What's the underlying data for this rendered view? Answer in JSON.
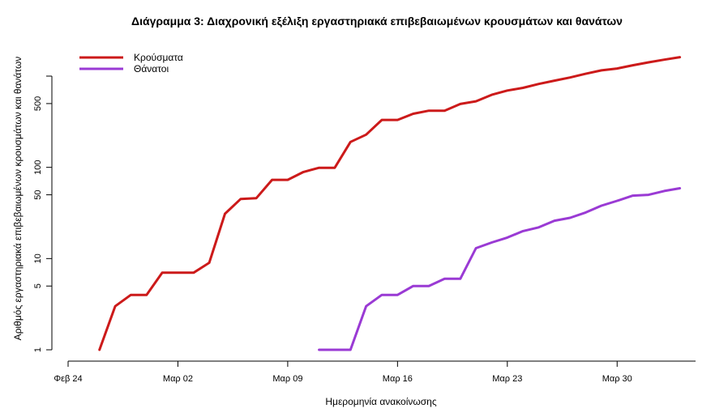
{
  "chart_data": {
    "type": "line",
    "title": "Διάγραμμα 3: Διαχρονική εξέλιξη εργαστηριακά επιβεβαιωμένων κρουσμάτων και θανάτων",
    "xlabel": "Ημερομηνία ανακοίνωσης",
    "ylabel": "Αριθμός εργαστηριακά επιβεβαιωμένων κρουσμάτων και θανάτων",
    "y_scale": "log",
    "ylim": [
      1,
      1500
    ],
    "xlim": [
      "2020-02-24",
      "2020-04-04"
    ],
    "x_ticks": [
      {
        "date": "2020-02-24",
        "label": "Φεβ 24"
      },
      {
        "date": "2020-03-02",
        "label": "Μαρ 02"
      },
      {
        "date": "2020-03-09",
        "label": "Μαρ 09"
      },
      {
        "date": "2020-03-16",
        "label": "Μαρ 16"
      },
      {
        "date": "2020-03-23",
        "label": "Μαρ 23"
      },
      {
        "date": "2020-03-30",
        "label": "Μαρ 30"
      }
    ],
    "y_ticks": [
      1,
      5,
      10,
      50,
      100,
      500
    ],
    "y_tick_labels": [
      "1",
      "5",
      "10",
      "50",
      "100",
      "500"
    ],
    "y_extra_ticks": [
      1000
    ],
    "legend_position": "top-left",
    "grid": false,
    "series": [
      {
        "name": "Κρούσματα",
        "color": "#cc1a1a",
        "x": [
          "2020-02-26",
          "2020-02-27",
          "2020-02-28",
          "2020-02-29",
          "2020-03-01",
          "2020-03-02",
          "2020-03-03",
          "2020-03-04",
          "2020-03-05",
          "2020-03-06",
          "2020-03-07",
          "2020-03-08",
          "2020-03-09",
          "2020-03-10",
          "2020-03-11",
          "2020-03-12",
          "2020-03-13",
          "2020-03-14",
          "2020-03-15",
          "2020-03-16",
          "2020-03-17",
          "2020-03-18",
          "2020-03-19",
          "2020-03-20",
          "2020-03-21",
          "2020-03-22",
          "2020-03-23",
          "2020-03-24",
          "2020-03-25",
          "2020-03-26",
          "2020-03-27",
          "2020-03-28",
          "2020-03-29",
          "2020-03-30",
          "2020-03-31",
          "2020-04-01",
          "2020-04-02",
          "2020-04-03"
        ],
        "values": [
          1,
          3,
          4,
          4,
          7,
          7,
          7,
          9,
          31,
          45,
          46,
          73,
          73,
          89,
          99,
          99,
          190,
          228,
          331,
          331,
          387,
          418,
          418,
          495,
          530,
          624,
          695,
          743,
          821,
          892,
          966,
          1061,
          1156,
          1212,
          1314,
          1415,
          1514,
          1613
        ]
      },
      {
        "name": "Θάνατοι",
        "color": "#9a3ad4",
        "x": [
          "2020-03-11",
          "2020-03-12",
          "2020-03-13",
          "2020-03-14",
          "2020-03-15",
          "2020-03-16",
          "2020-03-17",
          "2020-03-18",
          "2020-03-19",
          "2020-03-20",
          "2020-03-21",
          "2020-03-22",
          "2020-03-23",
          "2020-03-24",
          "2020-03-25",
          "2020-03-26",
          "2020-03-27",
          "2020-03-28",
          "2020-03-29",
          "2020-03-30",
          "2020-03-31",
          "2020-04-01",
          "2020-04-02",
          "2020-04-03"
        ],
        "values": [
          1,
          1,
          1,
          3,
          4,
          4,
          5,
          5,
          6,
          6,
          13,
          15,
          17,
          20,
          22,
          26,
          28,
          32,
          38,
          43,
          49,
          50,
          55,
          59
        ]
      }
    ]
  }
}
